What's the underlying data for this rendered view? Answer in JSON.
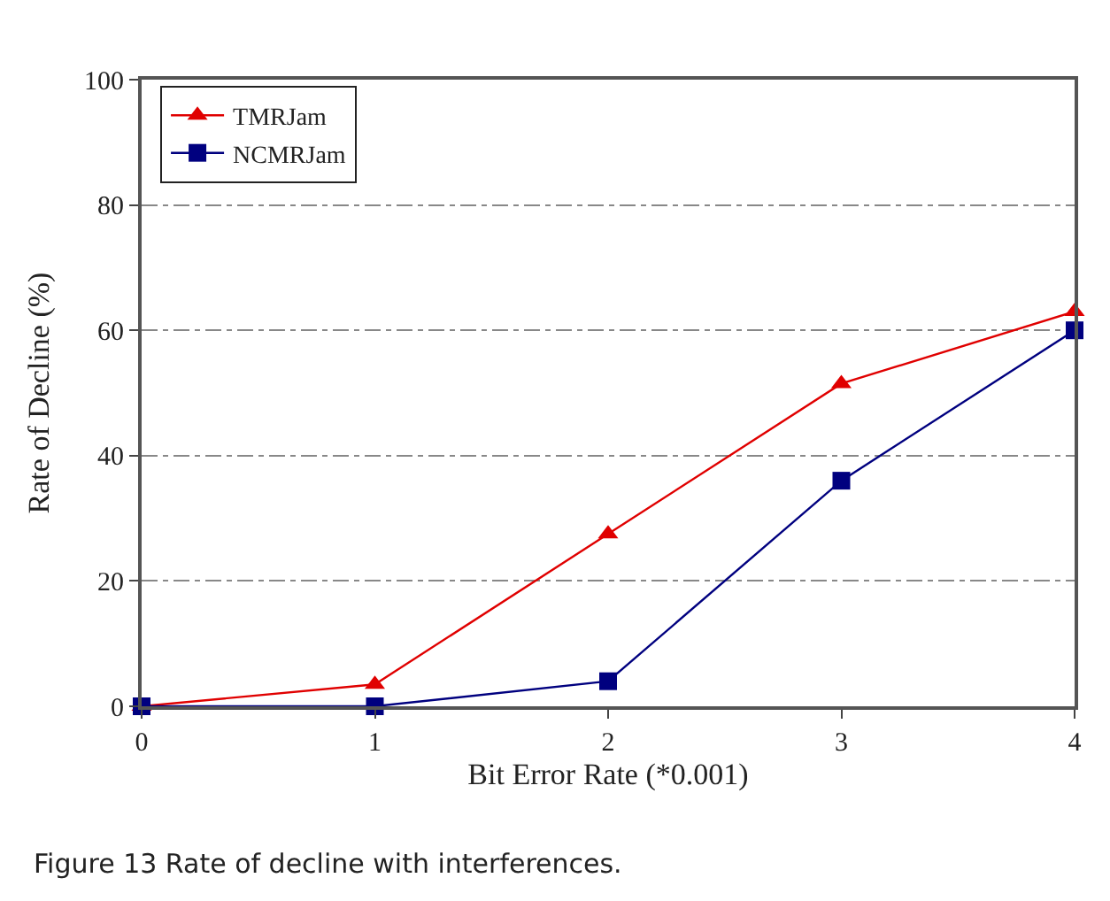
{
  "chart_data": {
    "type": "line",
    "xlabel": "Bit Error Rate (*0.001)",
    "ylabel": "Rate of Decline (%)",
    "annotations": [
      "Figure 13 Rate of decline with interferences."
    ],
    "x": [
      0,
      1,
      2,
      3,
      4
    ],
    "series": [
      {
        "name": "TMRJam",
        "color": "#e00000",
        "marker": "triangle",
        "values": [
          0,
          3.5,
          27.5,
          51.5,
          63
        ]
      },
      {
        "name": "NCMRJam",
        "color": "#00007f",
        "marker": "square",
        "values": [
          0,
          0,
          4,
          36,
          60
        ]
      }
    ],
    "xlim": [
      0,
      4
    ],
    "xticks": [
      0,
      1,
      2,
      3,
      4
    ],
    "ylim": [
      0,
      100
    ],
    "yticks": [
      0,
      20,
      40,
      60,
      80,
      100
    ],
    "grid": "y",
    "legend": "top left",
    "line_style": "solid"
  }
}
